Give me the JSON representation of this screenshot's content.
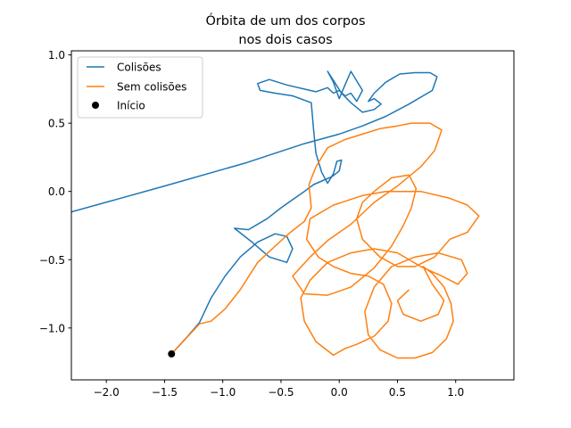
{
  "chart_data": {
    "type": "line",
    "title_lines": [
      "Órbita de um dos corpos",
      "nos dois casos"
    ],
    "xlabel": "",
    "ylabel": "",
    "xlim": [
      -2.3,
      1.5
    ],
    "ylim": [
      -1.38,
      1.03
    ],
    "xticks": [
      -2.0,
      -1.5,
      -1.0,
      -0.5,
      0.0,
      0.5,
      1.0
    ],
    "xtick_labels": [
      "−2.0",
      "−1.5",
      "−1.0",
      "−0.5",
      "0.0",
      "0.5",
      "1.0"
    ],
    "yticks": [
      -1.0,
      -0.5,
      0.0,
      0.5,
      1.0
    ],
    "ytick_labels": [
      "−1.0",
      "−0.5",
      "0.0",
      "0.5",
      "1.0"
    ],
    "grid": false,
    "legend_position": "upper-left",
    "legend": [
      {
        "label": "Colisões",
        "kind": "line",
        "color": "#1f77b4"
      },
      {
        "label": "Sem colisões",
        "kind": "line",
        "color": "#ff7f0e"
      },
      {
        "label": "Início",
        "kind": "marker",
        "color": "#000000"
      }
    ],
    "series": [
      {
        "name": "Colisões",
        "color": "#1f77b4",
        "points": [
          [
            -1.44,
            -1.19
          ],
          [
            -1.3,
            -1.06
          ],
          [
            -1.2,
            -0.96
          ],
          [
            -1.1,
            -0.78
          ],
          [
            -0.98,
            -0.62
          ],
          [
            -0.85,
            -0.48
          ],
          [
            -0.7,
            -0.37
          ],
          [
            -0.55,
            -0.31
          ],
          [
            -0.45,
            -0.33
          ],
          [
            -0.4,
            -0.42
          ],
          [
            -0.45,
            -0.52
          ],
          [
            -0.6,
            -0.48
          ],
          [
            -0.75,
            -0.37
          ],
          [
            -0.9,
            -0.27
          ],
          [
            -0.78,
            -0.28
          ],
          [
            -0.62,
            -0.2
          ],
          [
            -0.5,
            -0.12
          ],
          [
            -0.4,
            -0.06
          ],
          [
            -0.3,
            0.0
          ],
          [
            -0.22,
            0.05
          ],
          [
            -0.14,
            0.08
          ],
          [
            -0.06,
            0.11
          ],
          [
            0.0,
            0.15
          ],
          [
            0.02,
            0.23
          ],
          [
            -0.02,
            0.22
          ],
          [
            -0.05,
            0.13
          ],
          [
            -0.1,
            0.06
          ],
          [
            -0.15,
            0.14
          ],
          [
            -0.2,
            0.28
          ],
          [
            -0.22,
            0.45
          ],
          [
            -0.24,
            0.65
          ],
          [
            -0.4,
            0.7
          ],
          [
            -0.55,
            0.72
          ],
          [
            -0.68,
            0.74
          ],
          [
            -0.7,
            0.79
          ],
          [
            -0.6,
            0.82
          ],
          [
            -0.45,
            0.78
          ],
          [
            -0.3,
            0.75
          ],
          [
            -0.2,
            0.73
          ],
          [
            -0.1,
            0.76
          ],
          [
            -0.05,
            0.72
          ],
          [
            0.0,
            0.74
          ],
          [
            0.05,
            0.7
          ],
          [
            0.1,
            0.72
          ],
          [
            0.15,
            0.66
          ],
          [
            0.2,
            0.74
          ],
          [
            0.1,
            0.88
          ],
          [
            0.05,
            0.78
          ],
          [
            0.0,
            0.68
          ],
          [
            -0.05,
            0.8
          ],
          [
            -0.1,
            0.88
          ],
          [
            -0.04,
            0.8
          ],
          [
            0.02,
            0.72
          ],
          [
            0.1,
            0.65
          ],
          [
            0.2,
            0.58
          ],
          [
            0.3,
            0.6
          ],
          [
            0.36,
            0.64
          ],
          [
            0.3,
            0.68
          ],
          [
            0.25,
            0.66
          ],
          [
            0.3,
            0.72
          ],
          [
            0.4,
            0.8
          ],
          [
            0.52,
            0.86
          ],
          [
            0.65,
            0.87
          ],
          [
            0.78,
            0.87
          ],
          [
            0.84,
            0.84
          ],
          [
            0.8,
            0.74
          ],
          [
            0.6,
            0.64
          ],
          [
            0.4,
            0.55
          ],
          [
            0.2,
            0.48
          ],
          [
            0.0,
            0.42
          ],
          [
            -0.3,
            0.35
          ],
          [
            -0.8,
            0.21
          ],
          [
            -1.5,
            0.04
          ],
          [
            -2.3,
            -0.15
          ]
        ]
      },
      {
        "name": "Sem colisões",
        "color": "#ff7f0e",
        "points": [
          [
            -1.44,
            -1.19
          ],
          [
            -1.32,
            -1.08
          ],
          [
            -1.2,
            -0.97
          ],
          [
            -1.1,
            -0.95
          ],
          [
            -0.98,
            -0.86
          ],
          [
            -0.85,
            -0.72
          ],
          [
            -0.7,
            -0.52
          ],
          [
            -0.55,
            -0.4
          ],
          [
            -0.42,
            -0.3
          ],
          [
            -0.3,
            -0.22
          ],
          [
            -0.24,
            -0.12
          ],
          [
            -0.26,
            0.05
          ],
          [
            -0.2,
            0.18
          ],
          [
            -0.1,
            0.32
          ],
          [
            0.05,
            0.38
          ],
          [
            0.2,
            0.42
          ],
          [
            0.35,
            0.46
          ],
          [
            0.5,
            0.48
          ],
          [
            0.62,
            0.5
          ],
          [
            0.78,
            0.5
          ],
          [
            0.88,
            0.45
          ],
          [
            0.82,
            0.3
          ],
          [
            0.7,
            0.18
          ],
          [
            0.5,
            0.04
          ],
          [
            0.3,
            -0.08
          ],
          [
            0.1,
            -0.24
          ],
          [
            -0.1,
            -0.36
          ],
          [
            -0.25,
            -0.48
          ],
          [
            -0.4,
            -0.62
          ],
          [
            -0.3,
            -0.75
          ],
          [
            -0.1,
            -0.76
          ],
          [
            0.1,
            -0.7
          ],
          [
            0.3,
            -0.56
          ],
          [
            0.45,
            -0.4
          ],
          [
            0.55,
            -0.25
          ],
          [
            0.62,
            -0.12
          ],
          [
            0.66,
            0.02
          ],
          [
            0.6,
            0.12
          ],
          [
            0.45,
            0.1
          ],
          [
            0.3,
            0.0
          ],
          [
            0.2,
            -0.08
          ],
          [
            0.15,
            -0.2
          ],
          [
            0.2,
            -0.35
          ],
          [
            0.35,
            -0.48
          ],
          [
            0.5,
            -0.55
          ],
          [
            0.65,
            -0.55
          ],
          [
            0.82,
            -0.48
          ],
          [
            0.95,
            -0.35
          ],
          [
            1.1,
            -0.3
          ],
          [
            1.2,
            -0.18
          ],
          [
            1.1,
            -0.1
          ],
          [
            0.95,
            -0.05
          ],
          [
            0.7,
            0.0
          ],
          [
            0.4,
            0.0
          ],
          [
            0.2,
            -0.03
          ],
          [
            -0.05,
            -0.1
          ],
          [
            -0.25,
            -0.2
          ],
          [
            -0.28,
            -0.35
          ],
          [
            -0.18,
            -0.48
          ],
          [
            -0.05,
            -0.55
          ],
          [
            0.1,
            -0.6
          ],
          [
            0.25,
            -0.62
          ],
          [
            0.38,
            -0.68
          ],
          [
            0.45,
            -0.82
          ],
          [
            0.42,
            -0.95
          ],
          [
            0.3,
            -1.06
          ],
          [
            0.15,
            -1.12
          ],
          [
            0.05,
            -1.15
          ],
          [
            -0.05,
            -1.2
          ],
          [
            -0.2,
            -1.1
          ],
          [
            -0.3,
            -0.95
          ],
          [
            -0.33,
            -0.78
          ],
          [
            -0.25,
            -0.65
          ],
          [
            -0.1,
            -0.52
          ],
          [
            0.1,
            -0.45
          ],
          [
            0.3,
            -0.42
          ],
          [
            0.5,
            -0.45
          ],
          [
            0.7,
            -0.55
          ],
          [
            0.88,
            -0.62
          ],
          [
            1.02,
            -0.68
          ],
          [
            1.1,
            -0.6
          ],
          [
            1.05,
            -0.5
          ],
          [
            0.85,
            -0.45
          ],
          [
            0.65,
            -0.48
          ],
          [
            0.45,
            -0.55
          ],
          [
            0.3,
            -0.7
          ],
          [
            0.22,
            -0.88
          ],
          [
            0.25,
            -1.05
          ],
          [
            0.35,
            -1.16
          ],
          [
            0.5,
            -1.22
          ],
          [
            0.65,
            -1.22
          ],
          [
            0.8,
            -1.18
          ],
          [
            0.92,
            -1.08
          ],
          [
            0.98,
            -0.95
          ],
          [
            0.96,
            -0.82
          ],
          [
            0.9,
            -0.7
          ],
          [
            0.8,
            -0.6
          ],
          [
            0.72,
            -0.55
          ],
          [
            0.8,
            -0.68
          ],
          [
            0.9,
            -0.8
          ],
          [
            0.85,
            -0.9
          ],
          [
            0.7,
            -0.95
          ],
          [
            0.55,
            -0.9
          ],
          [
            0.5,
            -0.8
          ],
          [
            0.6,
            -0.72
          ]
        ]
      }
    ],
    "start_point": {
      "x": -1.44,
      "y": -1.19
    }
  }
}
